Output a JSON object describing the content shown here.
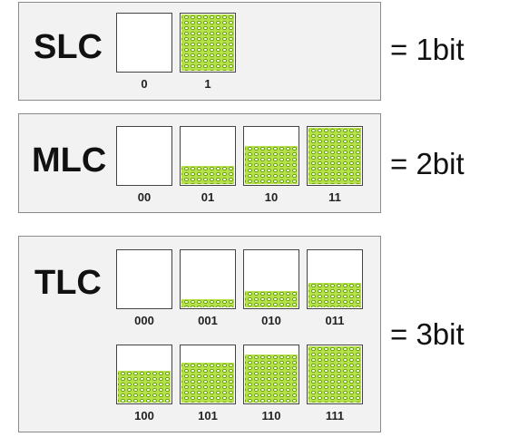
{
  "rows": [
    {
      "type": "SLC",
      "bits": "= 1bit",
      "cells": [
        {
          "code": "0",
          "level": 0
        },
        {
          "code": "1",
          "level": 1
        }
      ]
    },
    {
      "type": "MLC",
      "bits": "= 2bit",
      "cells": [
        {
          "code": "00",
          "level": 0
        },
        {
          "code": "01",
          "level": 0.33
        },
        {
          "code": "10",
          "level": 0.67
        },
        {
          "code": "11",
          "level": 1
        }
      ]
    },
    {
      "type": "TLC",
      "bits": "= 3bit",
      "cells": [
        {
          "code": "000",
          "level": 0
        },
        {
          "code": "001",
          "level": 0.14
        },
        {
          "code": "010",
          "level": 0.29
        },
        {
          "code": "011",
          "level": 0.43
        },
        {
          "code": "100",
          "level": 0.57
        },
        {
          "code": "101",
          "level": 0.71
        },
        {
          "code": "110",
          "level": 0.86
        },
        {
          "code": "111",
          "level": 1
        }
      ]
    }
  ],
  "colors": {
    "fill": "#b7e04a",
    "dot_ring": "#6aa90e",
    "panel": "#f2f2f2",
    "border": "#8a8a8a"
  }
}
